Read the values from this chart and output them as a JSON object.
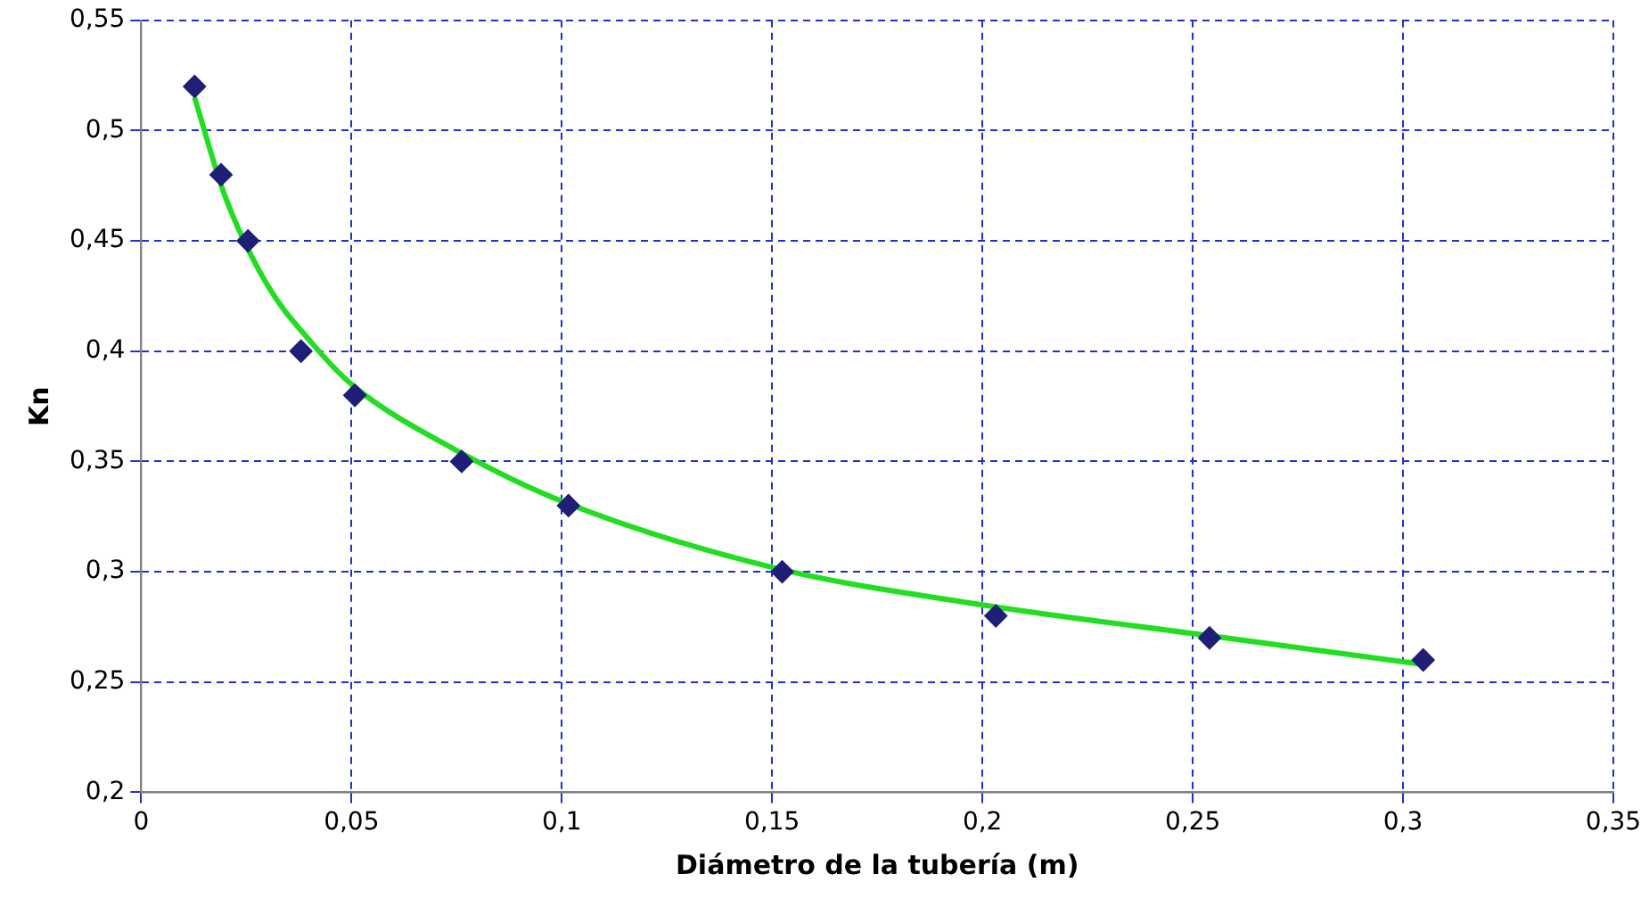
{
  "chart_data": {
    "type": "scatter",
    "xlabel": "Diámetro de la tubería (m)",
    "ylabel": "Kn",
    "xlim": [
      0,
      0.35
    ],
    "ylim": [
      0.2,
      0.55
    ],
    "xticks": [
      0,
      {
        "value": 0.05,
        "label": "0,05"
      },
      {
        "value": 0.1,
        "label": "0,1"
      },
      {
        "value": 0.15,
        "label": "0,15"
      },
      {
        "value": 0.2,
        "label": "0,2"
      },
      {
        "value": 0.25,
        "label": "0,25"
      },
      {
        "value": 0.3,
        "label": "0,3"
      },
      {
        "value": 0.35,
        "label": "0,35"
      }
    ],
    "yticks": [
      {
        "value": 0.2,
        "label": "0,2"
      },
      {
        "value": 0.25,
        "label": "0,25"
      },
      {
        "value": 0.3,
        "label": "0,3"
      },
      {
        "value": 0.35,
        "label": "0,35"
      },
      {
        "value": 0.4,
        "label": "0,4"
      },
      {
        "value": 0.45,
        "label": "0,45"
      },
      {
        "value": 0.5,
        "label": "0,5"
      },
      {
        "value": 0.55,
        "label": "0,55"
      }
    ],
    "grid": true,
    "legend": false,
    "series": [
      {
        "type": "scatter",
        "color": "#1f1f78",
        "marker": "diamond",
        "x": [
          0.0127,
          0.019,
          0.0254,
          0.038,
          0.0508,
          0.0762,
          0.1016,
          0.1524,
          0.2032,
          0.254,
          0.3048
        ],
        "values": [
          0.52,
          0.48,
          0.45,
          0.4,
          0.38,
          0.35,
          0.33,
          0.3,
          0.28,
          0.27,
          0.26
        ]
      },
      {
        "type": "line",
        "color": "#22dd22",
        "marker": "none",
        "line_style": "solid",
        "x": [
          0.0127,
          0.02,
          0.03,
          0.04,
          0.05,
          0.075,
          0.1,
          0.15,
          0.2,
          0.25,
          0.3048
        ],
        "values": [
          0.515,
          0.47,
          0.43,
          0.405,
          0.385,
          0.355,
          0.332,
          0.302,
          0.285,
          0.272,
          0.258
        ]
      }
    ]
  }
}
